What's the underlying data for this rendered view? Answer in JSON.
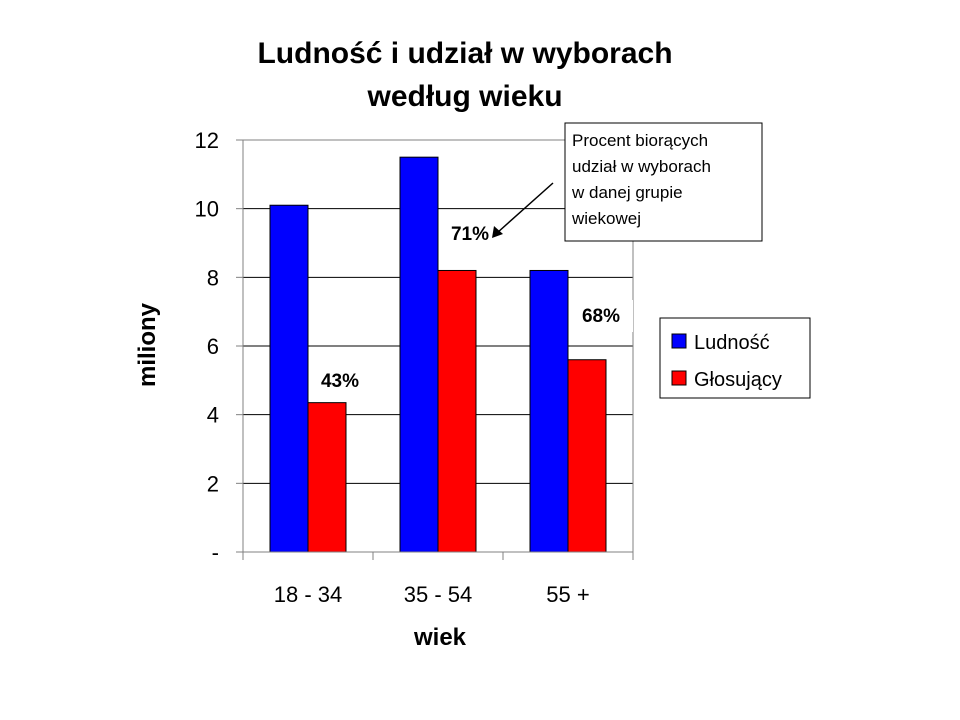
{
  "chart_data": {
    "type": "bar",
    "title": [
      "Ludność i udział w wyborach",
      "według wieku"
    ],
    "xlabel": "wiek",
    "ylabel": "miliony",
    "categories": [
      "18 - 34",
      "35 - 54",
      "55 +"
    ],
    "series": [
      {
        "name": "Ludność",
        "color": "#0000ff",
        "values": [
          10.1,
          11.5,
          8.2
        ]
      },
      {
        "name": "Głosujący",
        "color": "#ff0000",
        "values": [
          4.35,
          8.2,
          5.6
        ]
      }
    ],
    "ylim": [
      0,
      12
    ],
    "yticks": [
      {
        "value": 0,
        "label": "-"
      },
      {
        "value": 2,
        "label": "2"
      },
      {
        "value": 4,
        "label": "4"
      },
      {
        "value": 6,
        "label": "6"
      },
      {
        "value": 8,
        "label": "8"
      },
      {
        "value": 10,
        "label": "10"
      },
      {
        "value": 12,
        "label": "12"
      }
    ],
    "grid": true,
    "legend_position": "right",
    "bar_labels": [
      "43%",
      "71%",
      "68%"
    ],
    "callout": [
      "Procent biorących",
      "udział w wyborach",
      "w danej grupie",
      "wiekowej"
    ]
  }
}
